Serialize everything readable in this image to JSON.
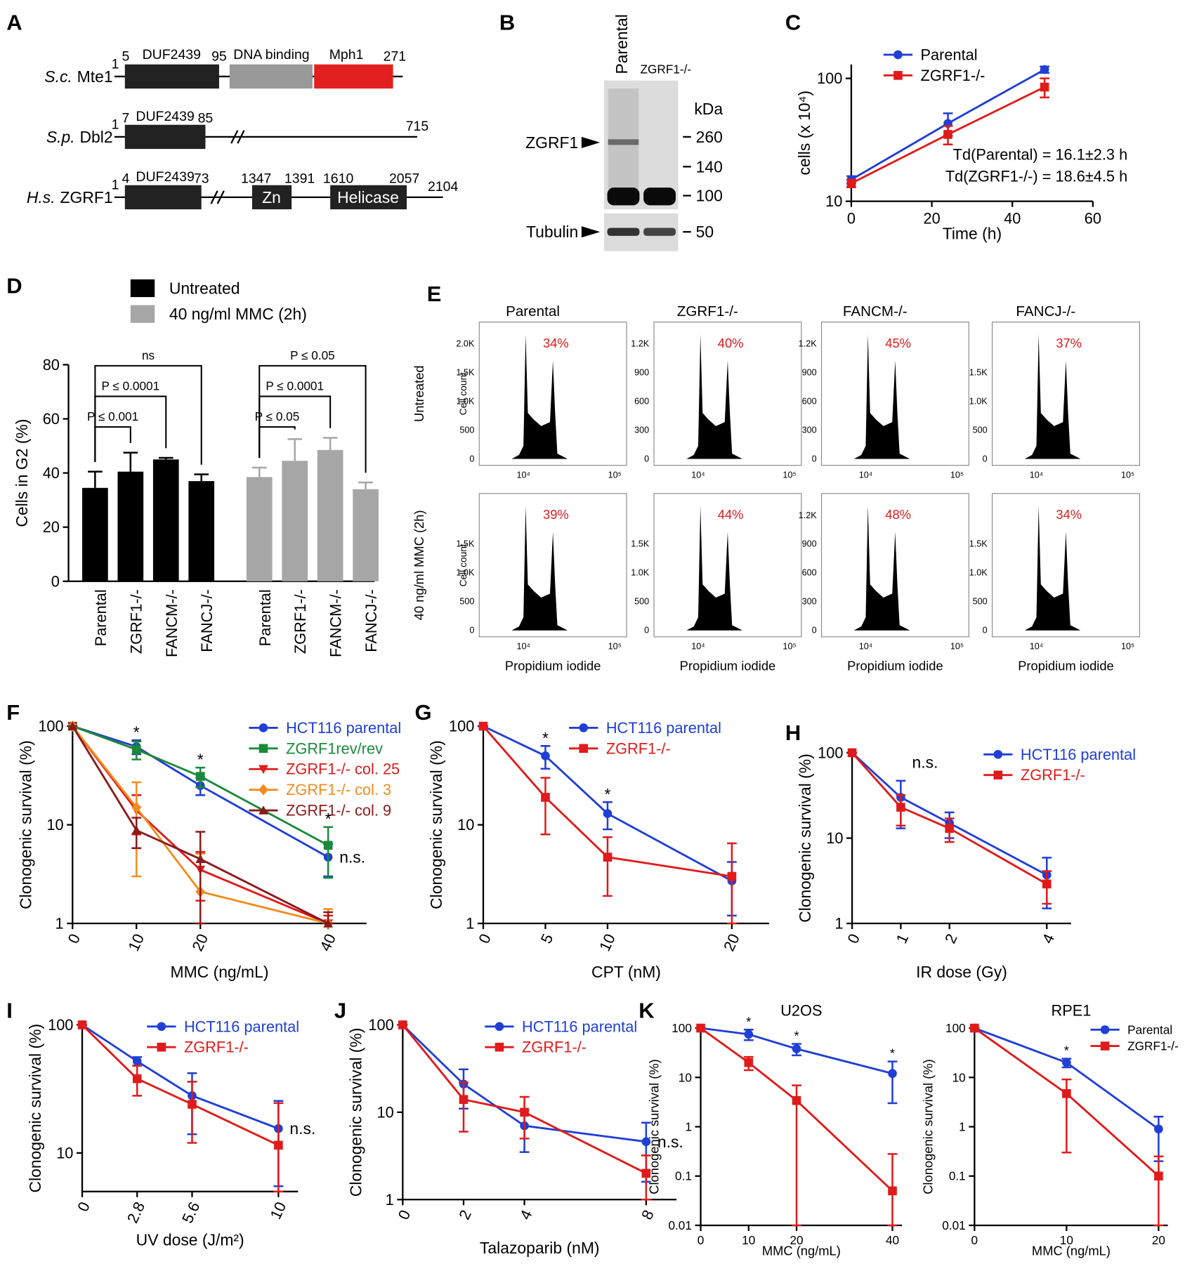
{
  "panel_a": {
    "label": "A",
    "proteins": [
      {
        "species": "S.c.",
        "gene": "Mte1",
        "numbers": [
          1,
          5,
          95,
          271
        ],
        "domains": [
          "DUF2439",
          "DNA binding",
          "Mph1"
        ]
      },
      {
        "species": "S.p.",
        "gene": "Dbl2",
        "numbers": [
          1,
          7,
          85,
          715
        ],
        "domains": [
          "DUF2439"
        ]
      },
      {
        "species": "H.s.",
        "gene": "ZGRF1",
        "numbers": [
          1,
          4,
          73,
          1347,
          1391,
          1610,
          2057,
          2104
        ],
        "domains": [
          "DUF2439",
          "Zn",
          "Helicase"
        ]
      }
    ]
  },
  "panel_b": {
    "label": "B",
    "lanes": [
      "Parental",
      "ZGRF1-/-"
    ],
    "unit": "kDa",
    "markers": [
      260,
      140,
      100,
      50
    ],
    "bands": [
      "ZGRF1",
      "Tubulin"
    ]
  },
  "panel_e": {
    "label": "E",
    "columns": [
      "Parental",
      "ZGRF1-/-",
      "FANCM-/-",
      "FANCJ-/-"
    ],
    "rows": [
      "Untreated",
      "40 ng/ml MMC (2h)"
    ],
    "ylabel": "Cell count",
    "xlabel": "Propidium iodide",
    "xticks": [
      "10⁴",
      "10⁵"
    ],
    "yticks": [
      [
        [
          "0",
          "500",
          "1.0K",
          "1.5K",
          "2.0K"
        ],
        [
          "0",
          "300",
          "600",
          "900",
          "1.2K"
        ],
        [
          "0",
          "300",
          "600",
          "900",
          "1.2K"
        ],
        [
          "0",
          "500",
          "1.0K",
          "1.5K"
        ]
      ],
      [
        [
          "0",
          "500",
          "1.0K",
          "1.5K"
        ],
        [
          "0",
          "500",
          "1.0K",
          "1.5K"
        ],
        [
          "0",
          "300",
          "600",
          "900",
          "1.2K"
        ],
        [
          "0",
          "500",
          "1.0K",
          "1.5K"
        ]
      ]
    ],
    "percents": [
      [
        "34%",
        "40%",
        "45%",
        "37%"
      ],
      [
        "39%",
        "44%",
        "48%",
        "34%"
      ]
    ]
  },
  "chart_data": [
    {
      "panel": "C",
      "type": "line",
      "xlabel": "Time (h)",
      "ylabel": "cells (x 10⁴)",
      "x": [
        0,
        24,
        48
      ],
      "xlim": [
        0,
        60
      ],
      "xticks": [
        0,
        20,
        40,
        60
      ],
      "ylim": [
        10,
        130
      ],
      "yticks": [
        10,
        100
      ],
      "log_y": true,
      "legend": "top",
      "legend_text_colored": false,
      "series": [
        {
          "name": "Parental",
          "color": "#1f3fd6",
          "marker": "circle",
          "values": [
            15,
            43,
            118
          ],
          "errors": [
            1,
            9,
            7
          ]
        },
        {
          "name": "ZGRF1-/-",
          "color": "#e01b1b",
          "marker": "square",
          "values": [
            14,
            35,
            85
          ],
          "errors": [
            1,
            6,
            15
          ]
        }
      ],
      "notes": [
        "Td(Parental) = 16.1±2.3 h",
        "Td(ZGRF1-/-) = 18.6±4.5 h"
      ]
    },
    {
      "panel": "D",
      "type": "bar",
      "ylabel": "Cells in G2 (%)",
      "categories": [
        "Parental",
        "ZGRF1-/-",
        "FANCM-/-",
        "FANCJ-/-"
      ],
      "ylim": [
        0,
        80
      ],
      "yticks": [
        0,
        20,
        40,
        60,
        80
      ],
      "legend": "top",
      "series": [
        {
          "name": "Untreated",
          "color": "#000000",
          "values": [
            34.5,
            40.5,
            45,
            37
          ],
          "errors": [
            6,
            7,
            0.6,
            2.5
          ],
          "comparisons": [
            {
              "text": "P ≤ 0.001",
              "from": 0,
              "to": 1
            },
            {
              "text": "P ≤ 0.0001",
              "from": 0,
              "to": 2
            },
            {
              "text": "ns",
              "from": 0,
              "to": 3
            }
          ]
        },
        {
          "name": "40 ng/ml MMC (2h)",
          "color": "#a6a6a6",
          "values": [
            38.5,
            44.5,
            48.5,
            34
          ],
          "errors": [
            3.5,
            8,
            4.5,
            2.5
          ],
          "comparisons": [
            {
              "text": "P ≤ 0.05",
              "from": 0,
              "to": 1
            },
            {
              "text": "P ≤ 0.0001",
              "from": 0,
              "to": 2
            },
            {
              "text": "P ≤ 0.05",
              "from": 0,
              "to": 3
            }
          ]
        }
      ]
    },
    {
      "panel": "F",
      "type": "line",
      "xlabel": "MMC (ng/mL)",
      "ylabel": "Clonogenic survival (%)",
      "x": [
        0,
        10,
        20,
        40
      ],
      "xlim": [
        0,
        46
      ],
      "xticks": [
        0,
        10,
        20,
        40
      ],
      "ylim": [
        1,
        100
      ],
      "yticks": [
        1,
        10,
        100
      ],
      "log_y": true,
      "rotate_xticks": true,
      "legend": "upper right",
      "legend_text_colored": true,
      "series": [
        {
          "name": "HCT116 parental",
          "color": "#1f3fd6",
          "marker": "circle",
          "values": [
            100,
            62,
            25,
            4.7
          ],
          "errors": [
            0,
            10,
            5,
            1.7
          ]
        },
        {
          "name": "ZGRF1rev/rev",
          "color": "#1a8a3a",
          "marker": "square",
          "values": [
            100,
            58,
            31,
            6.2
          ],
          "errors": [
            0,
            12,
            7,
            3.3
          ]
        },
        {
          "name": "ZGRF1-/- col. 25",
          "color": "#e01b1b",
          "marker": "triangle-down",
          "values": [
            100,
            14,
            3.5,
            1
          ],
          "errors": [
            0,
            6,
            1.8,
            0.2
          ]
        },
        {
          "name": "ZGRF1-/- col. 3",
          "color": "#f28c1e",
          "marker": "diamond",
          "values": [
            100,
            15,
            2.1,
            1
          ],
          "errors": [
            0,
            12,
            3,
            0.4
          ]
        },
        {
          "name": "ZGRF1-/- col. 9",
          "color": "#8b1a1a",
          "marker": "triangle-up",
          "values": [
            100,
            8.8,
            4.5,
            1
          ],
          "errors": [
            0,
            3,
            4,
            0.3
          ]
        }
      ],
      "annotations": [
        {
          "text": "*",
          "x": 10
        },
        {
          "text": "*",
          "x": 20
        },
        {
          "text": "*",
          "x": 40
        },
        {
          "text": "n.s.",
          "x": 40
        }
      ]
    },
    {
      "panel": "G",
      "type": "line",
      "xlabel": "CPT (nM)",
      "ylabel": "Clonogenic survival (%)",
      "x": [
        0,
        5,
        10,
        20
      ],
      "xlim": [
        0,
        23
      ],
      "xticks": [
        0,
        5,
        10,
        20
      ],
      "ylim": [
        1,
        100
      ],
      "yticks": [
        1,
        10,
        100
      ],
      "log_y": true,
      "rotate_xticks": true,
      "legend": "upper center",
      "legend_text_colored": true,
      "series": [
        {
          "name": "HCT116 parental",
          "color": "#1f3fd6",
          "marker": "circle",
          "values": [
            100,
            50,
            13,
            2.7
          ],
          "errors": [
            0,
            13,
            4,
            1.5
          ]
        },
        {
          "name": "ZGRF1-/-",
          "color": "#e01b1b",
          "marker": "square",
          "values": [
            100,
            19,
            4.7,
            3
          ],
          "errors": [
            0,
            11,
            2.8,
            3.5
          ]
        }
      ],
      "annotations": [
        {
          "text": "*",
          "x": 5
        },
        {
          "text": "*",
          "x": 10
        }
      ]
    },
    {
      "panel": "H",
      "type": "line",
      "xlabel": "IR dose (Gy)",
      "ylabel": "Clonogenic survival (%)",
      "x": [
        0,
        1,
        2,
        4
      ],
      "xlim": [
        0,
        4.5
      ],
      "xticks": [
        0,
        1,
        2,
        4
      ],
      "ylim": [
        1,
        100
      ],
      "yticks": [
        1,
        10,
        100
      ],
      "log_y": true,
      "rotate_xticks": true,
      "legend": "upper right",
      "legend_text_colored": true,
      "series": [
        {
          "name": "HCT116 parental",
          "color": "#1f3fd6",
          "marker": "circle",
          "values": [
            100,
            30,
            15,
            3.7
          ],
          "errors": [
            0,
            17,
            5,
            2.2
          ]
        },
        {
          "name": "ZGRF1-/-",
          "color": "#e01b1b",
          "marker": "square",
          "values": [
            100,
            23,
            13,
            2.9
          ],
          "errors": [
            0,
            9,
            4,
            1.2
          ]
        }
      ],
      "annotations": [
        {
          "text": "n.s.",
          "x": 1.5
        }
      ]
    },
    {
      "panel": "I",
      "type": "line",
      "xlabel": "UV dose (J/m²)",
      "ylabel": "Clonogenic survival (%)",
      "x": [
        0,
        2.8,
        5.6,
        10
      ],
      "xlim": [
        0,
        11
      ],
      "xticks": [
        0,
        2.8,
        5.6,
        10
      ],
      "ylim": [
        5,
        100
      ],
      "yticks": [
        10,
        100
      ],
      "log_y": true,
      "rotate_xticks": true,
      "legend": "upper center",
      "legend_text_colored": true,
      "series": [
        {
          "name": "HCT116 parental",
          "color": "#1f3fd6",
          "marker": "circle",
          "values": [
            100,
            52,
            28,
            15.5
          ],
          "errors": [
            0,
            4,
            14,
            10
          ]
        },
        {
          "name": "ZGRF1-/-",
          "color": "#e01b1b",
          "marker": "square",
          "values": [
            100,
            38,
            24,
            11.5
          ],
          "errors": [
            0,
            10,
            12,
            13
          ]
        }
      ],
      "annotations": [
        {
          "text": "n.s.",
          "x": 10
        }
      ]
    },
    {
      "panel": "J",
      "type": "line",
      "xlabel": "Talazoparib (nM)",
      "ylabel": "Clonogenic survival (%)",
      "x": [
        0,
        2,
        4,
        8
      ],
      "xlim": [
        0,
        9
      ],
      "xticks": [
        0,
        2,
        4,
        8
      ],
      "ylim": [
        1,
        100
      ],
      "yticks": [
        1,
        10,
        100
      ],
      "log_y": true,
      "rotate_xticks": true,
      "legend": "upper center",
      "legend_text_colored": true,
      "series": [
        {
          "name": "HCT116 parental",
          "color": "#1f3fd6",
          "marker": "circle",
          "values": [
            100,
            21,
            7,
            4.6
          ],
          "errors": [
            0,
            10,
            3.5,
            3
          ]
        },
        {
          "name": "ZGRF1-/-",
          "color": "#e01b1b",
          "marker": "square",
          "values": [
            100,
            14,
            10,
            2
          ],
          "errors": [
            0,
            8,
            5,
            1.2
          ]
        }
      ],
      "annotations": [
        {
          "text": "n.s.",
          "x": 8
        }
      ]
    },
    {
      "panel": "K",
      "type": "line",
      "title": "U2OS",
      "xlabel": "MMC (ng/mL)",
      "ylabel": "Clonogenic survival (%)",
      "x": [
        0,
        10,
        20,
        40
      ],
      "xlim": [
        0,
        42
      ],
      "xticks": [
        0,
        10,
        20,
        40
      ],
      "ylim": [
        0.01,
        100
      ],
      "yticks": [
        0.01,
        0.1,
        1,
        10,
        100
      ],
      "log_y": true,
      "series": [
        {
          "name": "Parental",
          "color": "#1f3fd6",
          "marker": "circle",
          "values": [
            100,
            75,
            38,
            12
          ],
          "errors": [
            0,
            18,
            10,
            9
          ]
        },
        {
          "name": "ZGRF1-/-",
          "color": "#e01b1b",
          "marker": "square",
          "values": [
            100,
            20,
            3.4,
            0.05
          ],
          "errors": [
            0,
            6,
            3.5,
            0.23
          ]
        }
      ],
      "annotations": [
        {
          "text": "*",
          "x": 10
        },
        {
          "text": "*",
          "x": 20
        },
        {
          "text": "*",
          "x": 40
        }
      ]
    },
    {
      "type": "line",
      "title": "RPE1",
      "xlabel": "MMC (ng/mL)",
      "ylabel": "Clonogenic survival (%)",
      "x": [
        0,
        10,
        20
      ],
      "xlim": [
        0,
        21
      ],
      "xticks": [
        0,
        10,
        20
      ],
      "ylim": [
        0.01,
        100
      ],
      "yticks": [
        0.01,
        0.1,
        1,
        10,
        100
      ],
      "log_y": true,
      "legend": "upper right",
      "legend_text_colored": false,
      "series": [
        {
          "name": "Parental",
          "color": "#1f3fd6",
          "marker": "circle",
          "values": [
            100,
            20,
            0.9
          ],
          "errors": [
            0,
            4,
            0.7
          ]
        },
        {
          "name": "ZGRF1-/-",
          "color": "#e01b1b",
          "marker": "square",
          "values": [
            100,
            4.7,
            0.1
          ],
          "errors": [
            0,
            4.4,
            0.15
          ]
        }
      ],
      "annotations": [
        {
          "text": "*",
          "x": 10
        }
      ]
    }
  ]
}
